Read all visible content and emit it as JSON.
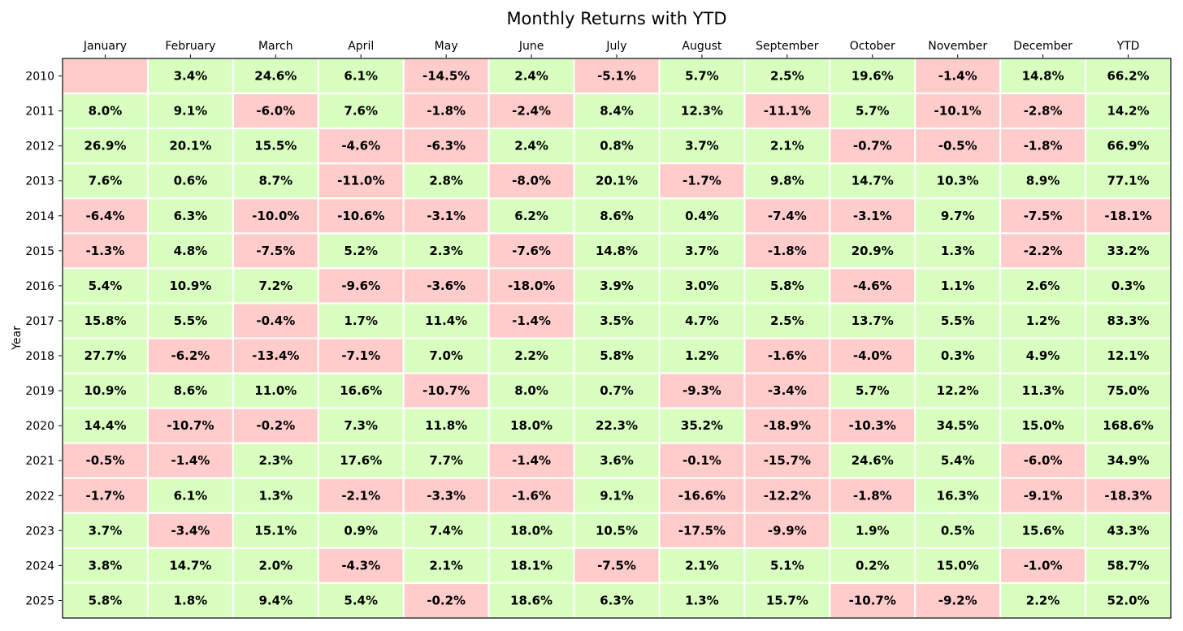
{
  "chart_data": {
    "type": "heatmap",
    "title": "Monthly Returns with YTD",
    "xlabel": "",
    "ylabel": "Year",
    "columns": [
      "January",
      "February",
      "March",
      "April",
      "May",
      "June",
      "July",
      "August",
      "September",
      "October",
      "November",
      "December",
      "YTD"
    ],
    "rows": [
      "2010",
      "2011",
      "2012",
      "2013",
      "2014",
      "2015",
      "2016",
      "2017",
      "2018",
      "2019",
      "2020",
      "2021",
      "2022",
      "2023",
      "2024",
      "2025"
    ],
    "values": [
      [
        null,
        3.4,
        24.6,
        6.1,
        -14.5,
        2.4,
        -5.1,
        5.7,
        2.5,
        19.6,
        -1.4,
        14.8,
        66.2
      ],
      [
        8.0,
        9.1,
        -6.0,
        7.6,
        -1.8,
        -2.4,
        8.4,
        12.3,
        -11.1,
        5.7,
        -10.1,
        -2.8,
        14.2
      ],
      [
        26.9,
        20.1,
        15.5,
        -4.6,
        -6.3,
        2.4,
        0.8,
        3.7,
        2.1,
        -0.7,
        -0.5,
        -1.8,
        66.9
      ],
      [
        7.6,
        0.6,
        8.7,
        -11.0,
        2.8,
        -8.0,
        20.1,
        -1.7,
        9.8,
        14.7,
        10.3,
        8.9,
        77.1
      ],
      [
        -6.4,
        6.3,
        -10.0,
        -10.6,
        -3.1,
        6.2,
        8.6,
        0.4,
        -7.4,
        -3.1,
        9.7,
        -7.5,
        -18.1
      ],
      [
        -1.3,
        4.8,
        -7.5,
        5.2,
        2.3,
        -7.6,
        14.8,
        3.7,
        -1.8,
        20.9,
        1.3,
        -2.2,
        33.2
      ],
      [
        5.4,
        10.9,
        7.2,
        -9.6,
        -3.6,
        -18.0,
        3.9,
        3.0,
        5.8,
        -4.6,
        1.1,
        2.6,
        0.3
      ],
      [
        15.8,
        5.5,
        -0.4,
        1.7,
        11.4,
        -1.4,
        3.5,
        4.7,
        2.5,
        13.7,
        5.5,
        1.2,
        83.3
      ],
      [
        27.7,
        -6.2,
        -13.4,
        -7.1,
        7.0,
        2.2,
        5.8,
        1.2,
        -1.6,
        -4.0,
        0.3,
        4.9,
        12.1
      ],
      [
        10.9,
        8.6,
        11.0,
        16.6,
        -10.7,
        8.0,
        0.7,
        -9.3,
        -3.4,
        5.7,
        12.2,
        11.3,
        75.0
      ],
      [
        14.4,
        -10.7,
        -0.2,
        7.3,
        11.8,
        18.0,
        22.3,
        35.2,
        -18.9,
        -10.3,
        34.5,
        15.0,
        168.6
      ],
      [
        -0.5,
        -1.4,
        2.3,
        17.6,
        7.7,
        -1.4,
        3.6,
        -0.1,
        -15.7,
        24.6,
        5.4,
        -6.0,
        34.9
      ],
      [
        -1.7,
        6.1,
        1.3,
        -2.1,
        -3.3,
        -1.6,
        9.1,
        -16.6,
        -12.2,
        -1.8,
        16.3,
        -9.1,
        -18.3
      ],
      [
        3.7,
        -3.4,
        15.1,
        0.9,
        7.4,
        18.0,
        10.5,
        -17.5,
        -9.9,
        1.9,
        0.5,
        15.6,
        43.3
      ],
      [
        3.8,
        14.7,
        2.0,
        -4.3,
        2.1,
        18.1,
        -7.5,
        2.1,
        5.1,
        0.2,
        15.0,
        -1.0,
        58.7
      ],
      [
        5.8,
        1.8,
        9.4,
        5.4,
        -0.2,
        18.6,
        6.3,
        1.3,
        15.7,
        -10.7,
        -9.2,
        2.2,
        52.0
      ]
    ],
    "value_suffix": "%",
    "colors": {
      "positive": "#d9ffc0",
      "negative": "#ffcccc",
      "grid": "#ffffff",
      "text": "#000000"
    },
    "column_labels_position": "top"
  }
}
